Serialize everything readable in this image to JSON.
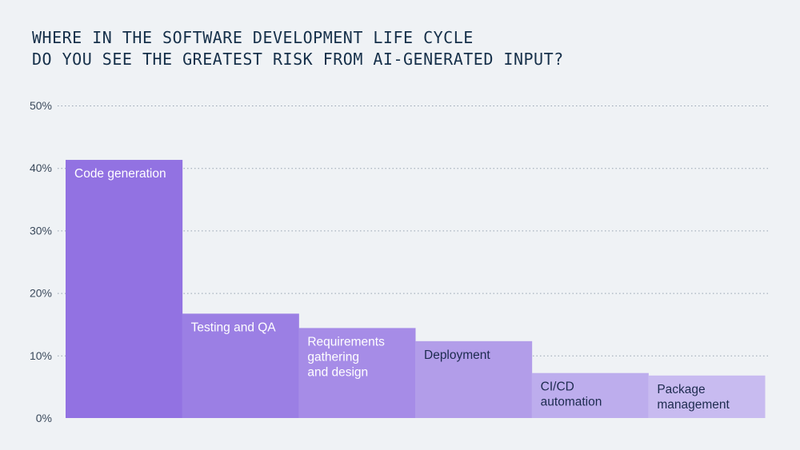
{
  "title_lines": [
    "WHERE IN THE SOFTWARE DEVELOPMENT LIFE CYCLE",
    "DO YOU SEE THE GREATEST RISK FROM AI-GENERATED INPUT?"
  ],
  "colors": {
    "background": "#eff2f5",
    "title": "#16304a",
    "tick_text": "#3b4a5c",
    "gridline": "#97a4b2",
    "label_light": "#ffffff",
    "label_dark": "#1d2b4f"
  },
  "chart_data": {
    "type": "bar",
    "title": "WHERE IN THE SOFTWARE DEVELOPMENT LIFE CYCLE DO YOU SEE THE GREATEST RISK FROM AI-GENERATED INPUT?",
    "xlabel": "",
    "ylabel": "",
    "ylim": [
      0,
      50
    ],
    "yticks": [
      0,
      10,
      20,
      30,
      40,
      50
    ],
    "ytick_labels": [
      "0%",
      "10%",
      "20%",
      "30%",
      "40%",
      "50%"
    ],
    "grid": true,
    "legend": "none",
    "categories": [
      "Code generation",
      "Testing and QA",
      "Requirements gathering and design",
      "Deployment",
      "CI/CD automation",
      "Package management"
    ],
    "bar_label_lines": [
      [
        "Code generation"
      ],
      [
        "Testing and QA"
      ],
      [
        "Requirements",
        "gathering",
        "and design"
      ],
      [
        "Deployment"
      ],
      [
        "CI/CD",
        "automation"
      ],
      [
        "Package",
        "management"
      ]
    ],
    "values": [
      41.3,
      16.7,
      14.4,
      12.3,
      7.2,
      6.8
    ],
    "bar_colors": [
      "#9272e2",
      "#9b7fe4",
      "#a68ce7",
      "#b29de9",
      "#bdaded",
      "#c8bbf0"
    ],
    "label_colors": [
      "light",
      "light",
      "light",
      "dark",
      "dark",
      "dark"
    ]
  }
}
